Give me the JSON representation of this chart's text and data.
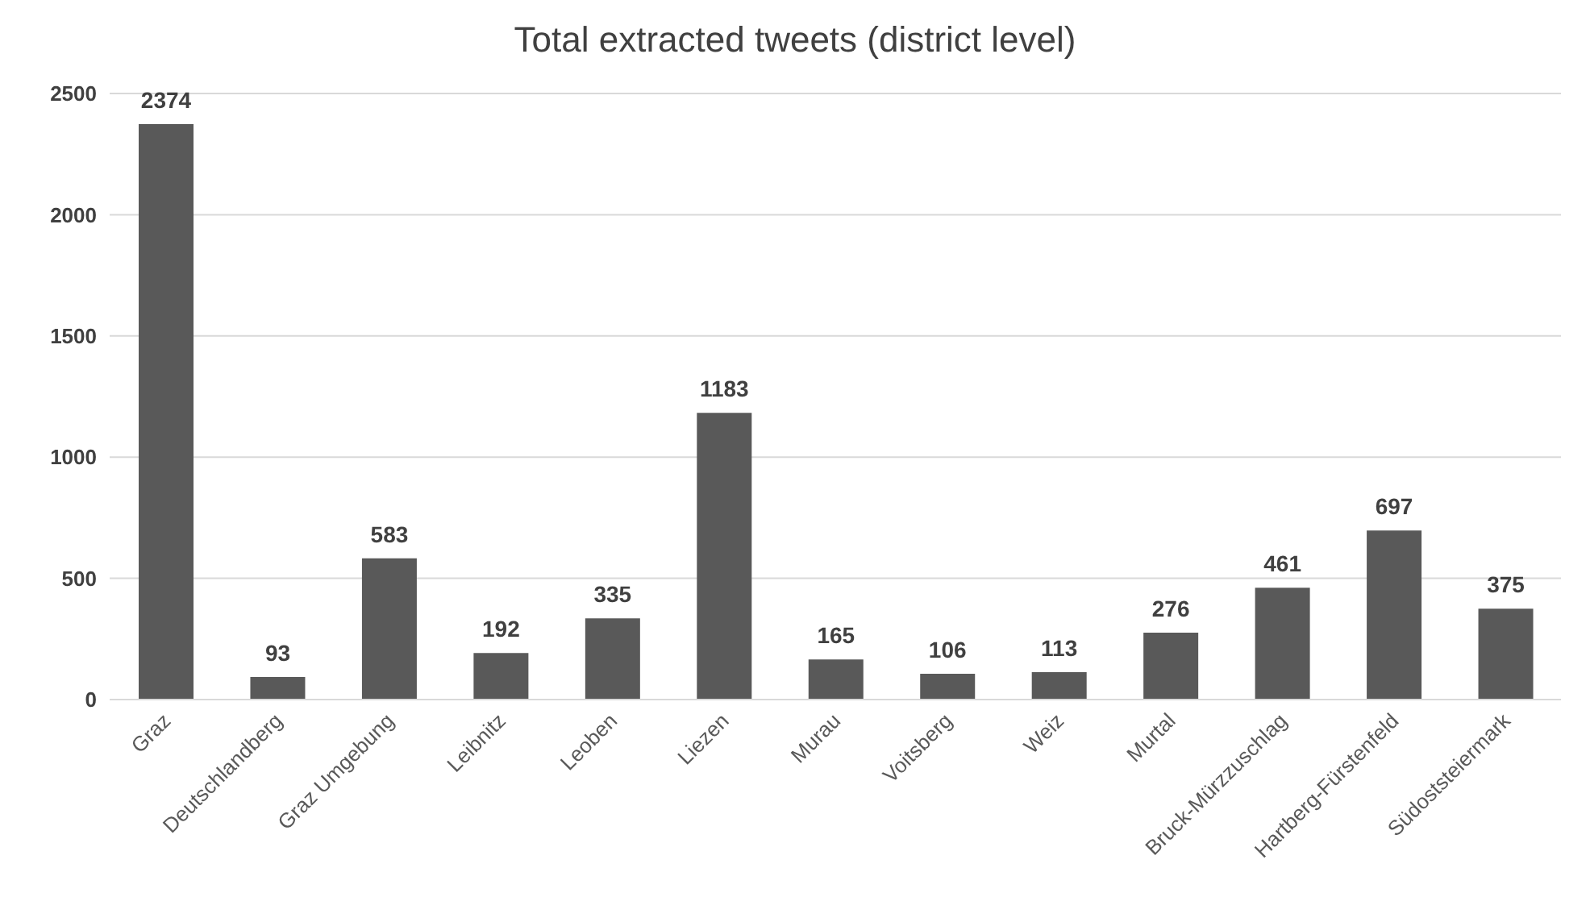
{
  "chart_data": {
    "type": "bar",
    "title": "Total extracted tweets (district level)",
    "categories": [
      "Graz",
      "Deutschlandberg",
      "Graz Umgebung",
      "Leibnitz",
      "Leoben",
      "Liezen",
      "Murau",
      "Voitsberg",
      "Weiz",
      "Murtal",
      "Bruck-Mürzzuschlag",
      "Hartberg-Fürstenfeld",
      "Südoststeiermark"
    ],
    "values": [
      2374,
      93,
      583,
      192,
      335,
      1183,
      165,
      106,
      113,
      276,
      461,
      697,
      375
    ],
    "color": "#595959",
    "ylim": [
      0,
      2500
    ],
    "yticks": [
      0,
      500,
      1000,
      1500,
      2000,
      2500
    ],
    "grid": "y",
    "data_labels": true,
    "legend": false
  }
}
